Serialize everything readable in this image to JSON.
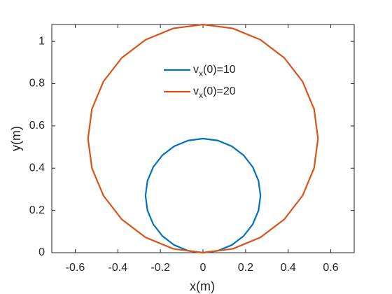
{
  "chart_data": {
    "type": "line",
    "x_label": "x(m)",
    "y_label": "y(m)",
    "xlim": [
      -0.71,
      0.71
    ],
    "ylim": [
      0,
      1.08
    ],
    "xticks": [
      -0.6,
      -0.4,
      -0.2,
      0,
      0.2,
      0.4,
      0.6
    ],
    "yticks": [
      0,
      0.2,
      0.4,
      0.6,
      0.8,
      1
    ],
    "legend": "top-center",
    "series": [
      {
        "name": "vx(0)=10",
        "color": "#0072BD",
        "x": [
          0,
          0.0699,
          0.135,
          0.1909,
          0.2338,
          0.2608,
          0.27,
          0.2608,
          0.2338,
          0.1909,
          0.135,
          0.0699,
          0,
          -0.0699,
          -0.135,
          -0.1909,
          -0.2338,
          -0.2608,
          -0.27,
          -0.2608,
          -0.2338,
          -0.1909,
          -0.135,
          -0.0699,
          0
        ],
        "values": [
          0,
          0.0092,
          0.0362,
          0.0791,
          0.135,
          0.2001,
          0.27,
          0.3399,
          0.405,
          0.4609,
          0.5038,
          0.5308,
          0.54,
          0.5308,
          0.5038,
          0.4609,
          0.405,
          0.3399,
          0.27,
          0.2001,
          0.135,
          0.0791,
          0.0362,
          0.0092,
          0
        ]
      },
      {
        "name": "vx(0)=20",
        "color": "#D95319",
        "x": [
          0,
          0.1398,
          0.27,
          0.3818,
          0.4676,
          0.5216,
          0.54,
          0.5216,
          0.4676,
          0.3818,
          0.27,
          0.1398,
          0,
          -0.1398,
          -0.27,
          -0.3818,
          -0.4676,
          -0.5216,
          -0.54,
          -0.5216,
          -0.4676,
          -0.3818,
          -0.27,
          -0.1398,
          0
        ],
        "values": [
          0,
          0.0184,
          0.0724,
          0.1582,
          0.27,
          0.4002,
          0.54,
          0.6798,
          0.81,
          0.9218,
          1.0076,
          1.0616,
          1.08,
          1.0616,
          1.0076,
          0.9218,
          0.81,
          0.6798,
          0.54,
          0.4002,
          0.27,
          0.1582,
          0.0724,
          0.0184,
          0
        ]
      }
    ]
  }
}
